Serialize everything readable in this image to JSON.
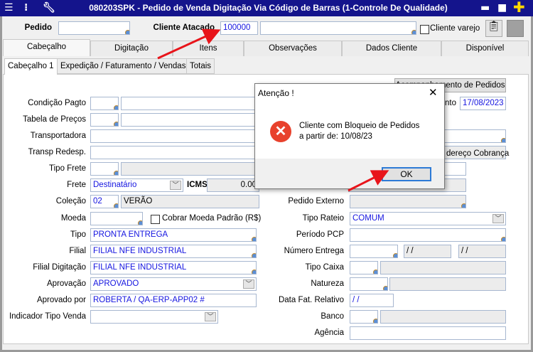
{
  "window": {
    "title": "080203SPK - Pedido de Venda Digitação Via Código de Barras (1-Controle De Qualidade)"
  },
  "header": {
    "pedido_label": "Pedido",
    "pedido_value": "",
    "cliente_label": "Cliente Atacado",
    "cliente_code": "100000",
    "cliente_name": "",
    "cliente_varejo_label": "Cliente varejo"
  },
  "tabs": [
    "Cabeçalho",
    "Digitação",
    "Itens",
    "Observações",
    "Dados Cliente",
    "Disponível"
  ],
  "subtabs": [
    "Cabeçalho 1",
    "Expedição / Faturamento / Vendas",
    "Totais"
  ],
  "left": {
    "condicao_pagto": "Condição Pagto",
    "tabela_precos": "Tabela de Preços",
    "transportadora": "Transportadora",
    "transp_redesp": "Transp Redesp.",
    "tipo_frete": "Tipo Frete",
    "frete": "Frete",
    "frete_value": "Destinatário",
    "icms": "ICMS",
    "icms_value": "0.00",
    "colecao": "Coleção",
    "colecao_code": "02",
    "colecao_name": "VERÃO",
    "moeda": "Moeda",
    "cobrar_moeda": "Cobrar Moeda Padrão (R$)",
    "tipo": "Tipo",
    "tipo_value": "PRONTA ENTREGA",
    "filial": "Filial",
    "filial_value": "FILIAL NFE INDUSTRIAL",
    "filial_digitacao": "Filial Digitação",
    "filial_digitacao_value": "FILIAL NFE INDUSTRIAL",
    "aprovacao": "Aprovação",
    "aprovacao_value": "APROVADO",
    "aprovado_por": "Aprovado por",
    "aprovado_por_value": "ROBERTA / QA-ERP-APP02 #",
    "indicador_tipo_venda": "Indicador Tipo Venda"
  },
  "right": {
    "acompanhamento_button": "Acompanhamento de Pedidos",
    "data_label": "nto",
    "data_value": "17/08/2023",
    "endereco_cobranca": "dereço Cobrança",
    "pedido_externo": "Pedido Externo",
    "tipo_rateio": "Tipo Rateio",
    "tipo_rateio_value": "COMUM",
    "periodo_pcp": "Período PCP",
    "numero_entrega": "Número Entrega",
    "date_blank": " /  /",
    "tipo_caixa": "Tipo Caixa",
    "natureza": "Natureza",
    "data_fat_relativo": "Data Fat. Relativo",
    "banco": "Banco",
    "agencia": "Agência"
  },
  "dialog": {
    "title": "Atenção !",
    "message_line1": "Cliente com Bloqueio de Pedidos",
    "message_line2": "a partir de: 10/08/23",
    "ok": "OK",
    "close": "✕"
  },
  "colors": {
    "titlebar": "#14148c",
    "value_text": "#1515e0",
    "error_icon": "#e8412c",
    "arrow": "#e8141a"
  }
}
